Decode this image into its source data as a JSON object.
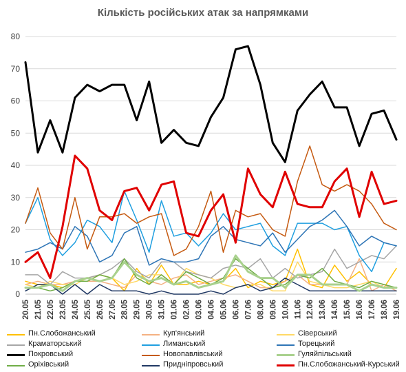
{
  "chart_data": {
    "type": "line",
    "title": "Кількість російських атак за напрямками",
    "xlabel": "",
    "ylabel": "",
    "ylim": [
      0,
      80
    ],
    "yticks": [
      0,
      10,
      20,
      30,
      40,
      50,
      60,
      70,
      80
    ],
    "grid": true,
    "legend_position": "bottom",
    "categories": [
      "20.05",
      "21.05",
      "22.05",
      "23.05",
      "24.05",
      "25.05",
      "26.05",
      "27.05",
      "28.05",
      "29.05",
      "30.05",
      "31.05",
      "01.06",
      "02.06",
      "03.06",
      "04.06",
      "05.06",
      "06.06",
      "07.06",
      "08.06",
      "09.06",
      "10.06",
      "11.06",
      "12.06",
      "13.06",
      "14.06",
      "15.06",
      "16.06",
      "17.06",
      "18.06",
      "19.06"
    ],
    "series": [
      {
        "name": "Пн.Слобожанський",
        "color": "#FFC000",
        "width": 1.5,
        "values": [
          4,
          3,
          3,
          2,
          4,
          4,
          6,
          5,
          1,
          8,
          3,
          9,
          3,
          3,
          4,
          3,
          4,
          8,
          2,
          4,
          3,
          4,
          14,
          3,
          2,
          9,
          4,
          7,
          3,
          2,
          8
        ]
      },
      {
        "name": "Куп'янський",
        "color": "#F4B183",
        "width": 1.5,
        "values": [
          3,
          4,
          3,
          3,
          4,
          4,
          4,
          3,
          2,
          6,
          4,
          3,
          5,
          6,
          3,
          4,
          5,
          6,
          4,
          2,
          2,
          4,
          6,
          3,
          3,
          3,
          3,
          11,
          1,
          3,
          1
        ]
      },
      {
        "name": "Сіверський",
        "color": "#FFD966",
        "width": 1.5,
        "values": [
          3,
          2,
          4,
          3,
          3,
          5,
          6,
          5,
          3,
          4,
          6,
          6,
          3,
          8,
          6,
          5,
          3,
          2,
          3,
          3,
          1,
          1,
          10,
          4,
          3,
          2,
          2,
          3,
          4,
          2,
          2
        ]
      },
      {
        "name": "Краматорський",
        "color": "#A6A6A6",
        "width": 1.5,
        "values": [
          6,
          6,
          3,
          7,
          5,
          5,
          6,
          8,
          11,
          7,
          5,
          10,
          10,
          7,
          6,
          5,
          8,
          9,
          8,
          11,
          5,
          8,
          5,
          6,
          7,
          14,
          8,
          10,
          12,
          11,
          15
        ]
      },
      {
        "name": "Лиманський",
        "color": "#1F9FE0",
        "width": 1.5,
        "values": [
          22,
          30,
          17,
          12,
          16,
          23,
          21,
          16,
          32,
          23,
          13,
          29,
          18,
          19,
          15,
          19,
          25,
          20,
          21,
          22,
          15,
          12,
          22,
          22,
          22,
          20,
          21,
          12,
          7,
          16,
          15
        ]
      },
      {
        "name": "Торецький",
        "color": "#2E75B6",
        "width": 1.5,
        "values": [
          13,
          14,
          16,
          14,
          21,
          18,
          10,
          12,
          19,
          21,
          9,
          11,
          10,
          10,
          11,
          18,
          21,
          17,
          16,
          15,
          19,
          13,
          17,
          21,
          23,
          26,
          21,
          15,
          18,
          16,
          15
        ]
      },
      {
        "name": "Покровський",
        "color": "#000000",
        "width": 3,
        "values": [
          72,
          44,
          54,
          44,
          61,
          65,
          63,
          65,
          65,
          54,
          66,
          47,
          51,
          47,
          46,
          55,
          61,
          76,
          77,
          65,
          47,
          41,
          57,
          62,
          66,
          58,
          58,
          46,
          56,
          57,
          48
        ]
      },
      {
        "name": "Новопавлівський",
        "color": "#C55A11",
        "width": 1.5,
        "values": [
          22,
          33,
          19,
          14,
          30,
          14,
          24,
          24,
          25,
          22,
          24,
          25,
          12,
          14,
          21,
          32,
          13,
          26,
          24,
          25,
          20,
          18,
          35,
          46,
          34,
          32,
          34,
          32,
          28,
          22,
          20
        ]
      },
      {
        "name": "Гуляйпільський",
        "color": "#A9D18E",
        "width": 3,
        "values": [
          2,
          2,
          3,
          1,
          4,
          5,
          4,
          5,
          10,
          6,
          4,
          5,
          3,
          4,
          2,
          3,
          4,
          12,
          7,
          5,
          5,
          2,
          6,
          6,
          3,
          3,
          3,
          1,
          3,
          2,
          2
        ]
      },
      {
        "name": "Оріхівський",
        "color": "#70AD47",
        "width": 1.5,
        "values": [
          2,
          2,
          1,
          2,
          4,
          4,
          6,
          5,
          11,
          5,
          3,
          6,
          3,
          7,
          5,
          3,
          5,
          11,
          8,
          5,
          2,
          3,
          6,
          5,
          8,
          4,
          3,
          2,
          4,
          3,
          2
        ]
      },
      {
        "name": "Придніпровський",
        "color": "#203864",
        "width": 1.5,
        "values": [
          1,
          3,
          3,
          0,
          3,
          0,
          3,
          1,
          1,
          1,
          0,
          1,
          0,
          0,
          0,
          1,
          0,
          2,
          3,
          1,
          2,
          5,
          3,
          1,
          1,
          1,
          1,
          1,
          1,
          1,
          1
        ]
      },
      {
        "name": "Пн.Слобожанський-Курський",
        "color": "#E00000",
        "width": 3,
        "values": [
          10,
          13,
          5,
          21,
          43,
          39,
          26,
          23,
          32,
          33,
          26,
          34,
          35,
          19,
          18,
          26,
          31,
          16,
          39,
          31,
          27,
          38,
          28,
          27,
          27,
          35,
          39,
          24,
          38,
          28,
          29
        ]
      }
    ]
  }
}
